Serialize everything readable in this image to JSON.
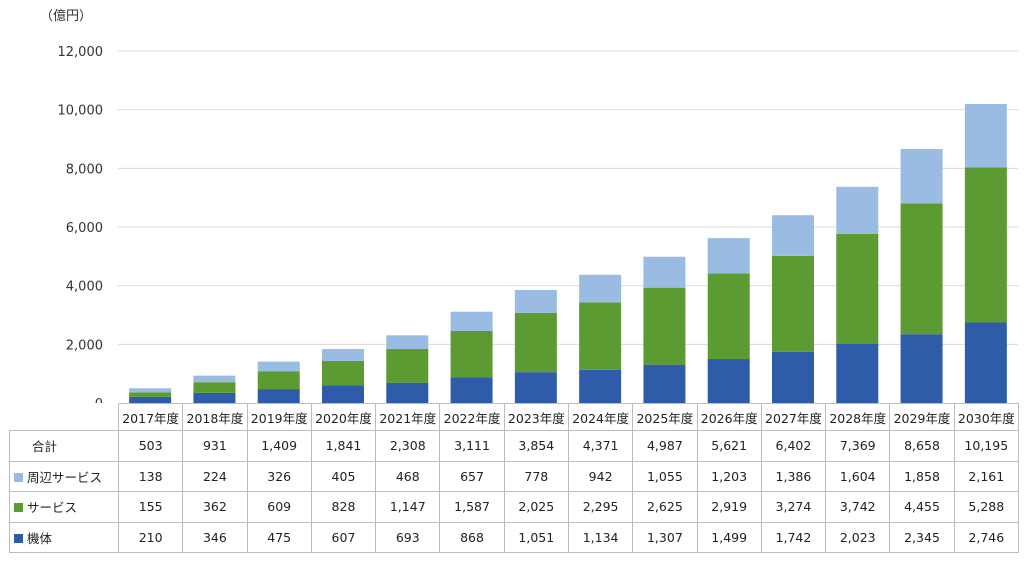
{
  "chart_data": {
    "type": "bar",
    "stacked": true,
    "unit_label": "（億円）",
    "ylim": [
      0,
      12000
    ],
    "yticks": [
      "0",
      "2,000",
      "4,000",
      "6,000",
      "8,000",
      "10,000",
      "12,000"
    ],
    "grid": true,
    "categories": [
      "2017年度",
      "2018年度",
      "2019年度",
      "2020年度",
      "2021年度",
      "2022年度",
      "2023年度",
      "2024年度",
      "2025年度",
      "2026年度",
      "2027年度",
      "2028年度",
      "2029年度",
      "2030年度"
    ],
    "series": [
      {
        "name": "機体",
        "color": "#2e5ca8",
        "values": [
          210,
          346,
          475,
          607,
          693,
          868,
          1051,
          1134,
          1307,
          1499,
          1742,
          2023,
          2345,
          2746
        ],
        "labels": [
          "210",
          "346",
          "475",
          "607",
          "693",
          "868",
          "1,051",
          "1,134",
          "1,307",
          "1,499",
          "1,742",
          "2,023",
          "2,345",
          "2,746"
        ]
      },
      {
        "name": "サービス",
        "color": "#5c9a32",
        "values": [
          155,
          362,
          609,
          828,
          1147,
          1587,
          2025,
          2295,
          2625,
          2919,
          3274,
          3742,
          4455,
          5288
        ],
        "labels": [
          "155",
          "362",
          "609",
          "828",
          "1,147",
          "1,587",
          "2,025",
          "2,295",
          "2,625",
          "2,919",
          "3,274",
          "3,742",
          "4,455",
          "5,288"
        ]
      },
      {
        "name": "周辺サービス",
        "color": "#9bbce2",
        "values": [
          138,
          224,
          326,
          405,
          468,
          657,
          778,
          942,
          1055,
          1203,
          1386,
          1604,
          1858,
          2161
        ],
        "labels": [
          "138",
          "224",
          "326",
          "405",
          "468",
          "657",
          "778",
          "942",
          "1,055",
          "1,203",
          "1,386",
          "1,604",
          "1,858",
          "2,161"
        ]
      }
    ],
    "total": {
      "name": "合計",
      "values": [
        503,
        931,
        1409,
        1841,
        2308,
        3111,
        3854,
        4371,
        4987,
        5621,
        6402,
        7369,
        8658,
        10195
      ],
      "labels": [
        "503",
        "931",
        "1,409",
        "1,841",
        "2,308",
        "3,111",
        "3,854",
        "4,371",
        "4,987",
        "5,621",
        "6,402",
        "7,369",
        "8,658",
        "10,195"
      ]
    }
  }
}
